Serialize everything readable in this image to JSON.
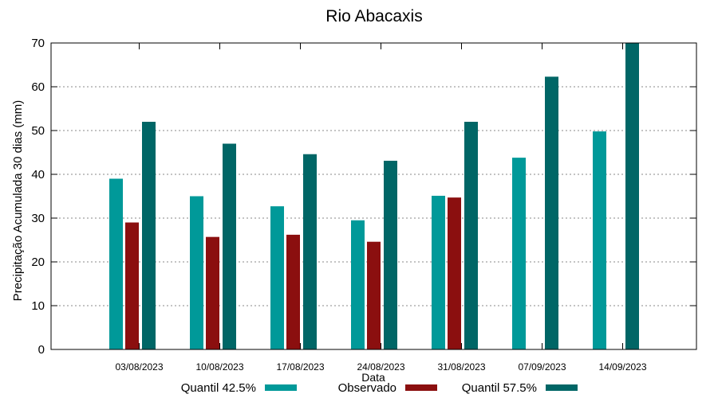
{
  "chart_data": {
    "type": "bar",
    "title": "Rio Abacaxis",
    "xlabel": "Data",
    "ylabel": "Precipitação Acumulada 30 dias (mm)",
    "ylim": [
      0,
      70
    ],
    "yticks": [
      0,
      10,
      20,
      30,
      40,
      50,
      60,
      70
    ],
    "grid": true,
    "legend_position": "bottom",
    "categories": [
      "03/08/2023",
      "10/08/2023",
      "17/08/2023",
      "24/08/2023",
      "31/08/2023",
      "07/09/2023",
      "14/09/2023"
    ],
    "series": [
      {
        "name": "Quantil 42.5%",
        "color": "#009999",
        "values": [
          39,
          35,
          32.7,
          29.5,
          35.1,
          43.8,
          49.8
        ]
      },
      {
        "name": "Observado",
        "color": "#8b0f0f",
        "values": [
          29,
          25.7,
          26.2,
          24.6,
          34.7,
          null,
          null
        ]
      },
      {
        "name": "Quantil 57.5%",
        "color": "#006666",
        "values": [
          52,
          47,
          44.6,
          43.1,
          52,
          62.3,
          70
        ]
      }
    ]
  }
}
